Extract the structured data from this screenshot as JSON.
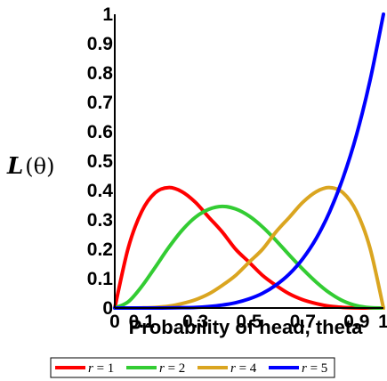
{
  "chart_data": {
    "type": "line",
    "title": "",
    "xlabel": "Probability of head, theta",
    "ylabel_symbol": "L",
    "ylabel_arg": "(θ)",
    "xlim": [
      0,
      1
    ],
    "ylim": [
      0,
      1
    ],
    "x_ticks": [
      {
        "value": 0,
        "label": "0"
      },
      {
        "value": 0.1,
        "label": "0.1"
      },
      {
        "value": 0.3,
        "label": "0.3"
      },
      {
        "value": 0.5,
        "label": "0.5"
      },
      {
        "value": 0.7,
        "label": "0.7"
      },
      {
        "value": 0.9,
        "label": "0.9"
      },
      {
        "value": 1,
        "label": "1"
      }
    ],
    "y_ticks": [
      {
        "value": 0,
        "label": "0"
      },
      {
        "value": 0.1,
        "label": "0.1"
      },
      {
        "value": 0.2,
        "label": "0.2"
      },
      {
        "value": 0.3,
        "label": "0.3"
      },
      {
        "value": 0.4,
        "label": "0.4"
      },
      {
        "value": 0.5,
        "label": "0.5"
      },
      {
        "value": 0.6,
        "label": "0.6"
      },
      {
        "value": 0.7,
        "label": "0.7"
      },
      {
        "value": 0.8,
        "label": "0.8"
      },
      {
        "value": 0.9,
        "label": "0.9"
      },
      {
        "value": 1,
        "label": "1"
      }
    ],
    "x": [
      0,
      0.05,
      0.1,
      0.15,
      0.2,
      0.25,
      0.3,
      0.35,
      0.4,
      0.45,
      0.5,
      0.55,
      0.6,
      0.65,
      0.7,
      0.75,
      0.8,
      0.85,
      0.9,
      0.95,
      1
    ],
    "series": [
      {
        "label_var": "r",
        "label_eq": " = 1",
        "color": "#ff0000",
        "values": [
          0,
          0.204,
          0.328,
          0.392,
          0.41,
          0.396,
          0.36,
          0.309,
          0.259,
          0.2,
          0.156,
          0.111,
          0.077,
          0.048,
          0.028,
          0.015,
          0.006,
          0.002,
          0.0005,
          3e-05,
          0
        ]
      },
      {
        "label_var": "r",
        "label_eq": " = 2",
        "color": "#33cc33",
        "values": [
          0,
          0.021,
          0.073,
          0.138,
          0.205,
          0.264,
          0.309,
          0.336,
          0.346,
          0.337,
          0.313,
          0.276,
          0.23,
          0.18,
          0.132,
          0.088,
          0.051,
          0.024,
          0.008,
          0.001,
          0
        ]
      },
      {
        "label_var": "r",
        "label_eq": " = 4",
        "color": "#daa520",
        "values": [
          0,
          0,
          0.0005,
          0.002,
          0.006,
          0.015,
          0.028,
          0.048,
          0.077,
          0.111,
          0.156,
          0.2,
          0.259,
          0.309,
          0.36,
          0.396,
          0.41,
          0.392,
          0.328,
          0.204,
          0
        ]
      },
      {
        "label_var": "r",
        "label_eq": " = 5",
        "color": "#0000ff",
        "values": [
          0,
          0,
          0,
          0.0001,
          0.0003,
          0.001,
          0.002,
          0.005,
          0.01,
          0.018,
          0.031,
          0.05,
          0.078,
          0.116,
          0.168,
          0.237,
          0.328,
          0.444,
          0.59,
          0.774,
          1
        ]
      }
    ],
    "grid": false,
    "legend_position": "bottom"
  }
}
